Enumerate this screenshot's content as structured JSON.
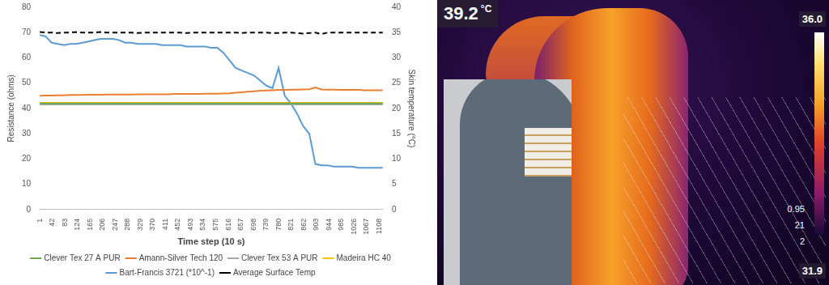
{
  "chart_data": {
    "type": "line",
    "x_label": "Time step (10 s)",
    "y_label": "Resistance (ohms)",
    "y2_label": "Skin temperature (°C)",
    "x": [
      1,
      20,
      40,
      60,
      80,
      100,
      120,
      140,
      160,
      180,
      200,
      220,
      240,
      260,
      280,
      300,
      320,
      340,
      360,
      380,
      400,
      420,
      440,
      460,
      480,
      500,
      520,
      540,
      560,
      580,
      600,
      620,
      640,
      660,
      680,
      700,
      720,
      740,
      760,
      780,
      800,
      820,
      840,
      860,
      880,
      900,
      920,
      940,
      960,
      980,
      1000,
      1020,
      1040,
      1060,
      1080,
      1100,
      1120
    ],
    "xlim": [
      1,
      1120
    ],
    "xticks": [
      1,
      42,
      83,
      124,
      165,
      206,
      247,
      288,
      329,
      370,
      411,
      452,
      493,
      534,
      575,
      616,
      657,
      698,
      739,
      780,
      821,
      862,
      903,
      944,
      985,
      1026,
      1067,
      1108
    ],
    "ylim": [
      0,
      80
    ],
    "yticks": [
      0,
      10,
      20,
      30,
      40,
      50,
      60,
      70,
      80
    ],
    "y2lim": [
      0,
      40
    ],
    "y2ticks": [
      0,
      5,
      10,
      15,
      20,
      25,
      30,
      35,
      40
    ],
    "grid": false,
    "legend": "bottom",
    "series": [
      {
        "name": "Clever Tex 27 A PUR",
        "color": "#6aa84f",
        "line_style": "solid",
        "values": [
          42,
          42,
          42,
          42,
          42,
          42,
          42,
          42,
          42,
          42,
          42,
          42,
          42,
          42,
          42,
          42,
          42,
          42,
          42,
          42,
          42,
          42,
          42,
          42,
          42,
          42,
          42,
          42,
          42,
          42,
          42,
          42,
          42,
          42,
          42,
          42,
          42,
          42,
          42,
          42,
          42,
          42,
          42,
          42,
          42,
          42,
          42,
          42,
          42,
          42,
          42,
          42,
          42,
          42,
          42,
          42,
          42
        ]
      },
      {
        "name": "Amann-Silver Tech 120",
        "color": "#ed7d31",
        "line_style": "solid",
        "values": [
          45.0,
          45.1,
          45.1,
          45.2,
          45.2,
          45.3,
          45.3,
          45.3,
          45.4,
          45.4,
          45.4,
          45.5,
          45.5,
          45.5,
          45.5,
          45.5,
          45.6,
          45.6,
          45.6,
          45.6,
          45.6,
          45.6,
          45.7,
          45.7,
          45.7,
          45.7,
          45.7,
          45.8,
          45.8,
          45.8,
          45.9,
          46.0,
          46.2,
          46.4,
          46.6,
          46.8,
          47.0,
          47.1,
          47.2,
          47.3,
          47.3,
          47.4,
          47.4,
          47.5,
          47.6,
          48.3,
          47.5,
          47.4,
          47.4,
          47.3,
          47.3,
          47.3,
          47.3,
          47.2,
          47.2,
          47.2,
          47.2
        ]
      },
      {
        "name": "Clever Tex 53 A PUR",
        "color": "#a5a5a5",
        "line_style": "solid",
        "values": [
          41.6,
          41.6,
          41.6,
          41.6,
          41.6,
          41.6,
          41.6,
          41.6,
          41.6,
          41.6,
          41.6,
          41.6,
          41.6,
          41.6,
          41.6,
          41.6,
          41.6,
          41.6,
          41.6,
          41.6,
          41.6,
          41.6,
          41.6,
          41.6,
          41.6,
          41.6,
          41.6,
          41.6,
          41.6,
          41.6,
          41.6,
          41.6,
          41.6,
          41.6,
          41.6,
          41.6,
          41.6,
          41.6,
          41.6,
          41.6,
          41.6,
          41.6,
          41.6,
          41.6,
          41.6,
          41.6,
          41.6,
          41.6,
          41.6,
          41.6,
          41.6,
          41.6,
          41.6,
          41.6,
          41.6,
          41.6,
          41.6
        ]
      },
      {
        "name": "Madeira HC 40",
        "color": "#ffc000",
        "line_style": "solid",
        "values": [
          42.2,
          42.2,
          42.2,
          42.2,
          42.2,
          42.2,
          42.2,
          42.2,
          42.2,
          42.2,
          42.2,
          42.2,
          42.2,
          42.2,
          42.2,
          42.2,
          42.2,
          42.2,
          42.2,
          42.2,
          42.2,
          42.2,
          42.2,
          42.2,
          42.2,
          42.2,
          42.2,
          42.2,
          42.2,
          42.2,
          42.2,
          42.2,
          42.2,
          42.2,
          42.2,
          42.2,
          42.2,
          42.2,
          42.2,
          42.2,
          42.2,
          42.2,
          42.2,
          42.2,
          42.2,
          42.2,
          42.2,
          42.2,
          42.2,
          42.2,
          42.2,
          42.2,
          42.2,
          42.2,
          42.2,
          42.2,
          42.2
        ]
      },
      {
        "name": "Bart-Francis 3721 (*10^-1)",
        "color": "#5b9bd5",
        "line_style": "solid",
        "values": [
          69,
          68.5,
          66,
          65.5,
          65,
          65.5,
          65.5,
          66,
          66.5,
          67,
          67.5,
          67.5,
          67.5,
          67,
          66,
          66,
          65.5,
          65.5,
          65.5,
          65.5,
          65,
          65,
          65,
          65,
          64.5,
          64.5,
          64.5,
          64.5,
          64,
          64,
          62,
          59,
          56,
          55,
          54,
          53,
          51,
          49,
          48,
          56,
          45,
          42,
          38,
          33,
          30,
          18,
          17.5,
          17.5,
          17,
          17,
          17,
          17,
          16.5,
          16.5,
          16.5,
          16.5,
          16.5
        ]
      },
      {
        "name": "Average Surface Temp",
        "color": "#000000",
        "line_style": "dashed",
        "axis": "y2",
        "values": [
          35.1,
          35.0,
          35.0,
          34.9,
          35.0,
          35.0,
          35.1,
          35.0,
          35.0,
          35.0,
          35.1,
          35.0,
          35.0,
          35.0,
          35.0,
          35.0,
          34.9,
          35.0,
          35.0,
          35.0,
          35.0,
          35.0,
          35.0,
          35.0,
          34.9,
          35.0,
          35.0,
          35.0,
          35.0,
          35.0,
          35.0,
          35.0,
          35.0,
          34.9,
          35.0,
          35.0,
          35.0,
          35.0,
          34.9,
          34.9,
          35.0,
          35.0,
          34.9,
          34.8,
          34.9,
          35.0,
          34.7,
          35.0,
          35.0,
          35.0,
          35.0,
          35.0,
          35.0,
          35.0,
          35.0,
          35.0,
          35.0
        ]
      }
    ]
  },
  "image_panel": {
    "readout": "39.2",
    "readout_unit": "°C",
    "scale_max": "36.0",
    "scale_min": "31.9",
    "parameters": [
      "0.95",
      "21",
      "2"
    ]
  }
}
